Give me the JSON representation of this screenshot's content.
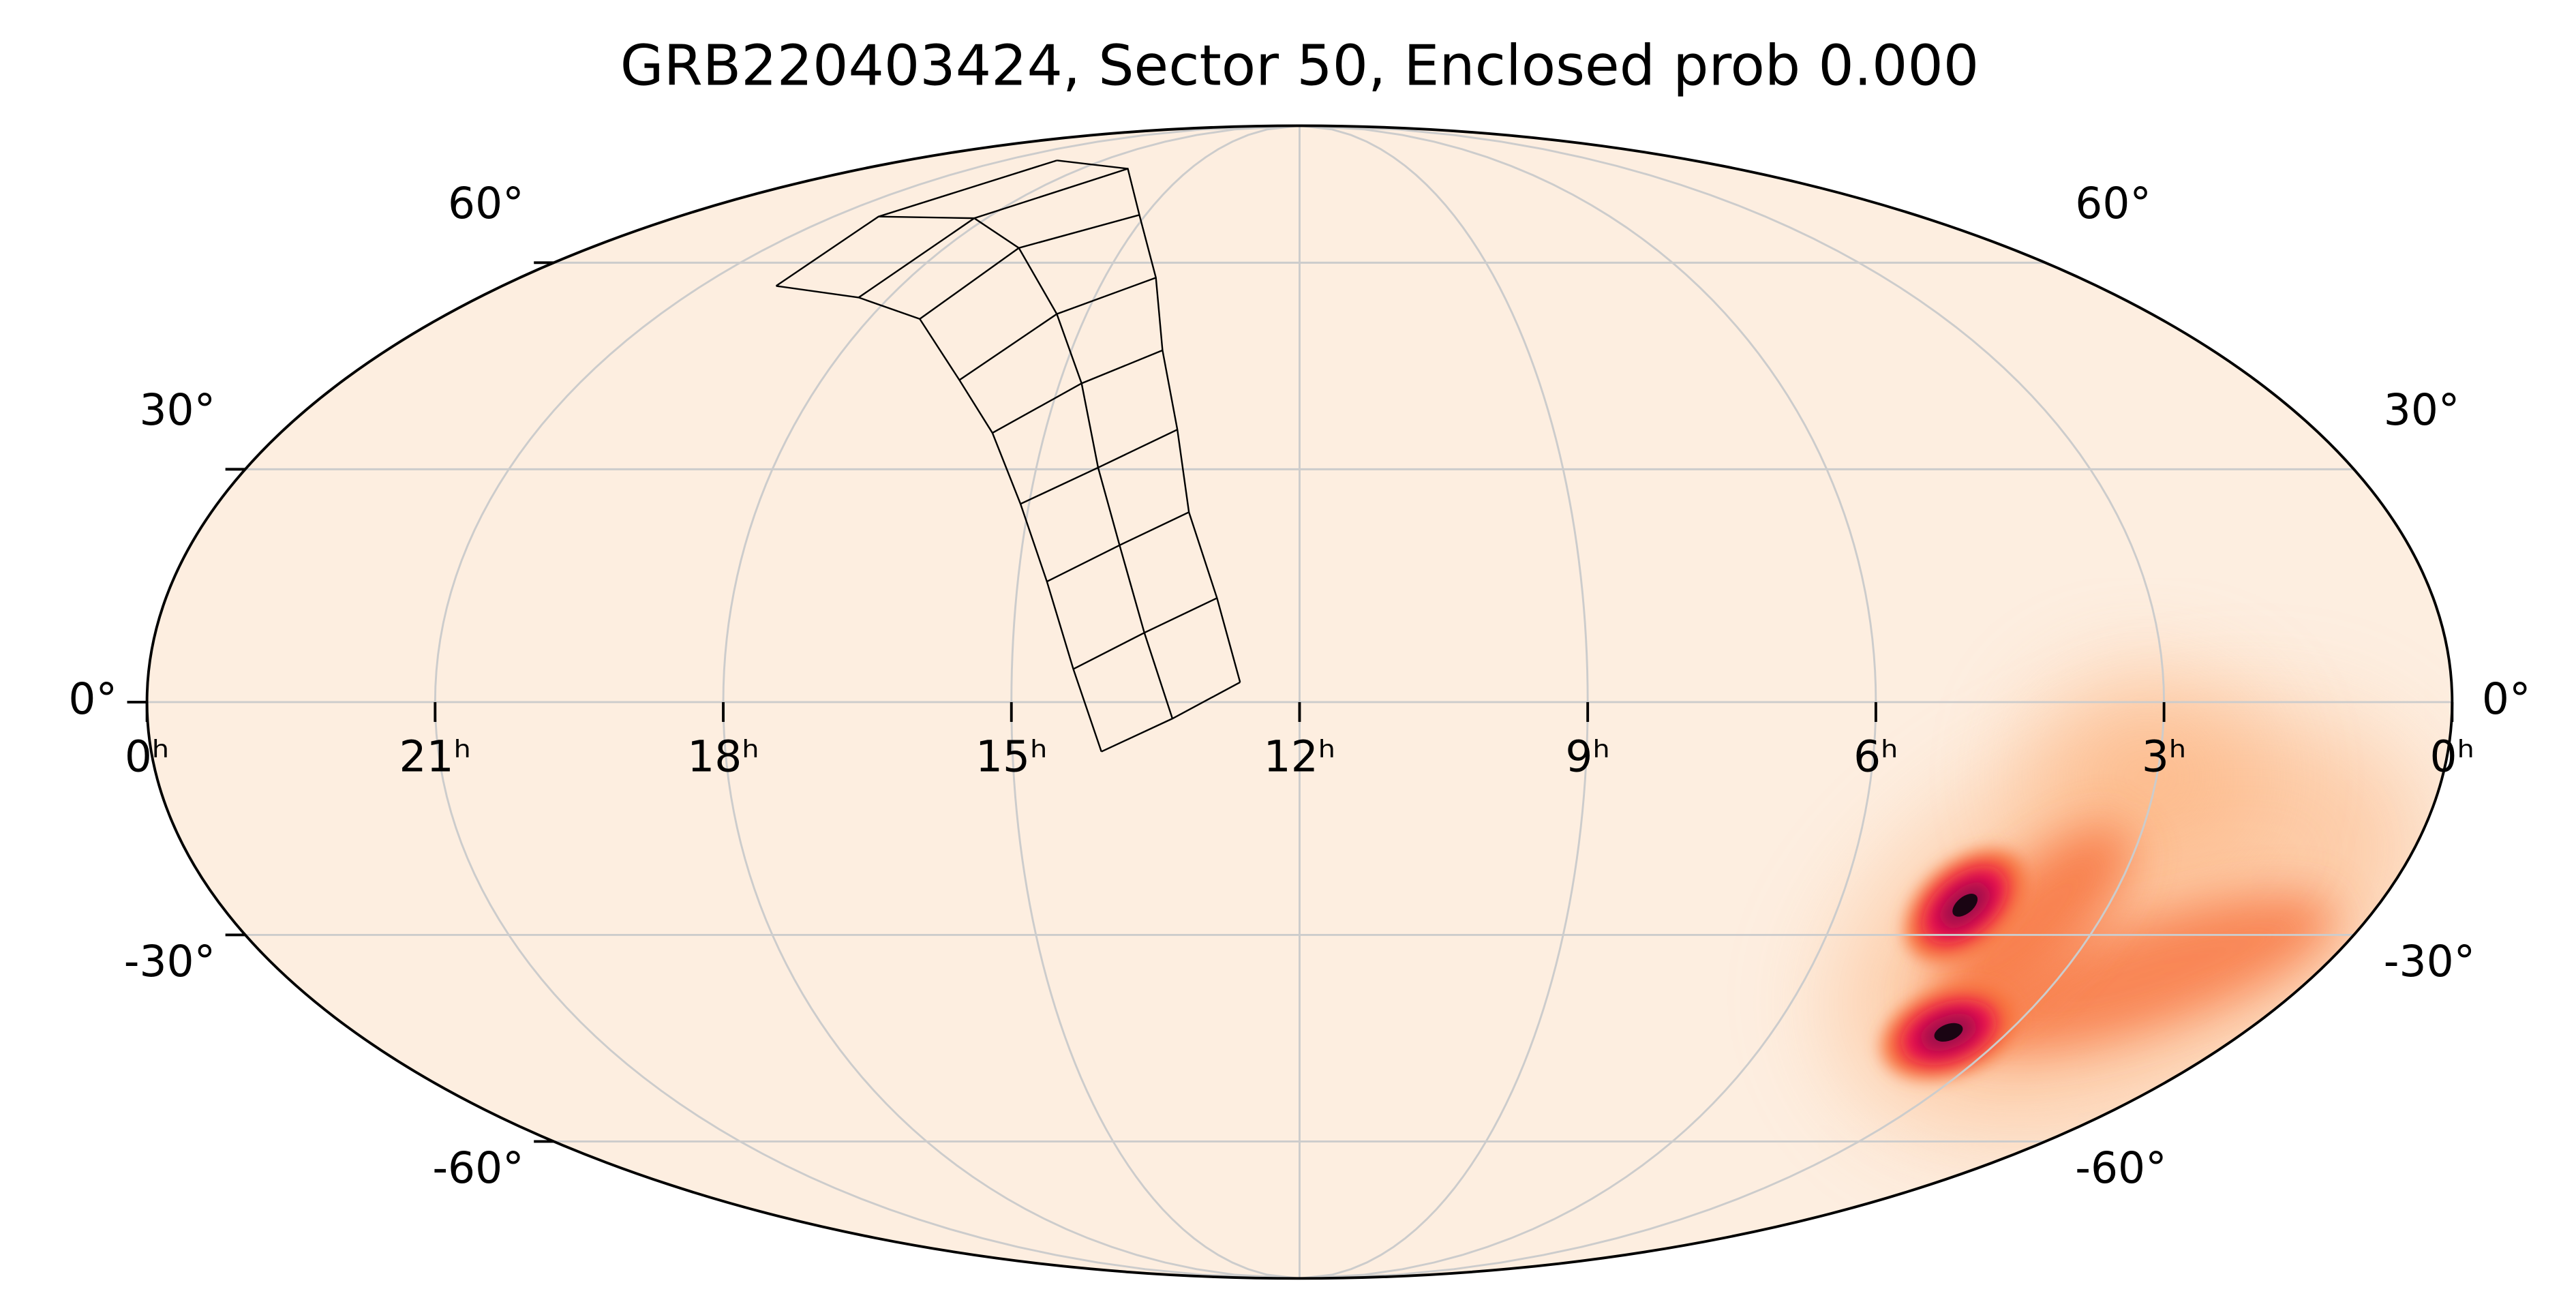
{
  "chart_data": {
    "type": "skymap",
    "projection": "mollweide",
    "title": "GRB220403424, Sector 50, Enclosed prob 0.000",
    "xlim": [
      24,
      0
    ],
    "xticks": [
      {
        "value": 24,
        "label": "0ʰ"
      },
      {
        "value": 21,
        "label": "21ʰ"
      },
      {
        "value": 18,
        "label": "18ʰ"
      },
      {
        "value": 15,
        "label": "15ʰ"
      },
      {
        "value": 12,
        "label": "12ʰ"
      },
      {
        "value": 9,
        "label": "9ʰ"
      },
      {
        "value": 6,
        "label": "6ʰ"
      },
      {
        "value": 3,
        "label": "3ʰ"
      },
      {
        "value": 0,
        "label": "0ʰ"
      }
    ],
    "ylim": [
      -90,
      90
    ],
    "yticks": [
      {
        "value": 60,
        "label": "60°"
      },
      {
        "value": 30,
        "label": "30°"
      },
      {
        "value": 0,
        "label": "0°"
      },
      {
        "value": -30,
        "label": "-30°"
      },
      {
        "value": -60,
        "label": "-60°"
      }
    ],
    "grid": true,
    "colormap": [
      "#fdeee0",
      "#fdb07a",
      "#f7703a",
      "#e8114f",
      "#9b0b4c",
      "#1a0513"
    ]
  }
}
